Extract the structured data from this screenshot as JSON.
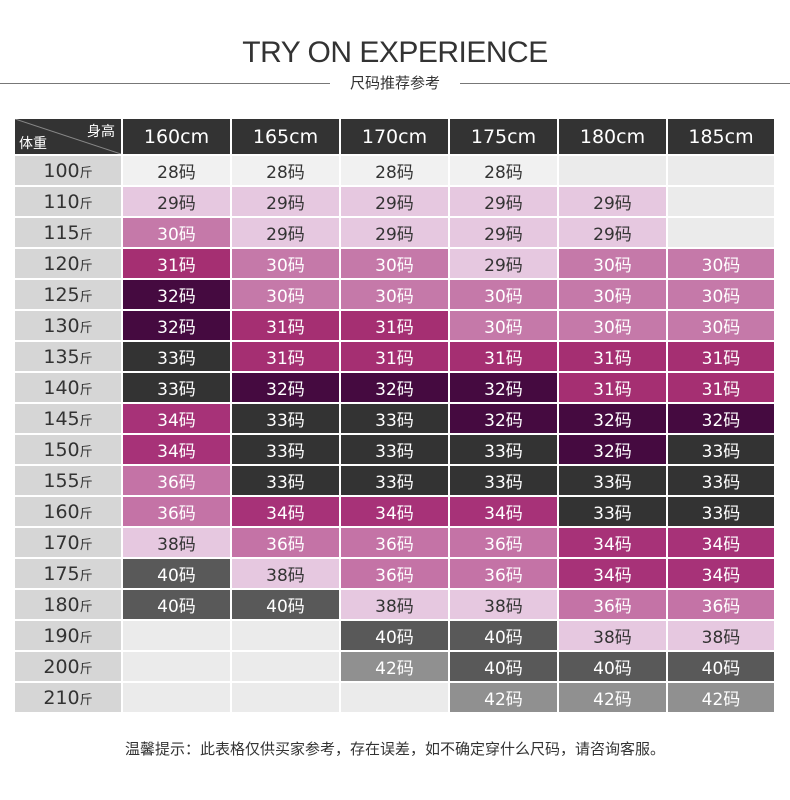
{
  "header": {
    "title": "TRY ON EXPERIENCE",
    "subtitle": "尺码推荐参考"
  },
  "table": {
    "corner_height_label": "身高",
    "corner_weight_label": "体重",
    "weight_unit": "斤",
    "heights": [
      "160cm",
      "165cm",
      "170cm",
      "175cm",
      "180cm",
      "185cm"
    ],
    "rows": [
      {
        "weight": "100",
        "sizes": [
          "28码",
          "28码",
          "28码",
          "28码",
          "",
          ""
        ]
      },
      {
        "weight": "110",
        "sizes": [
          "29码",
          "29码",
          "29码",
          "29码",
          "29码",
          ""
        ]
      },
      {
        "weight": "115",
        "sizes": [
          "30码",
          "29码",
          "29码",
          "29码",
          "29码",
          ""
        ]
      },
      {
        "weight": "120",
        "sizes": [
          "31码",
          "30码",
          "30码",
          "29码",
          "30码",
          "30码"
        ]
      },
      {
        "weight": "125",
        "sizes": [
          "32码",
          "30码",
          "30码",
          "30码",
          "30码",
          "30码"
        ]
      },
      {
        "weight": "130",
        "sizes": [
          "32码",
          "31码",
          "31码",
          "30码",
          "30码",
          "30码"
        ]
      },
      {
        "weight": "135",
        "sizes": [
          "33码",
          "31码",
          "31码",
          "31码",
          "31码",
          "31码"
        ]
      },
      {
        "weight": "140",
        "sizes": [
          "33码",
          "32码",
          "32码",
          "32码",
          "31码",
          "31码"
        ]
      },
      {
        "weight": "145",
        "sizes": [
          "34码",
          "33码",
          "33码",
          "32码",
          "32码",
          "32码"
        ]
      },
      {
        "weight": "150",
        "sizes": [
          "34码",
          "33码",
          "33码",
          "33码",
          "32码",
          "33码"
        ]
      },
      {
        "weight": "155",
        "sizes": [
          "36码",
          "33码",
          "33码",
          "33码",
          "33码",
          "33码"
        ]
      },
      {
        "weight": "160",
        "sizes": [
          "36码",
          "34码",
          "34码",
          "34码",
          "33码",
          "33码"
        ]
      },
      {
        "weight": "170",
        "sizes": [
          "38码",
          "36码",
          "36码",
          "36码",
          "34码",
          "34码"
        ]
      },
      {
        "weight": "175",
        "sizes": [
          "40码",
          "38码",
          "36码",
          "36码",
          "34码",
          "34码"
        ]
      },
      {
        "weight": "180",
        "sizes": [
          "40码",
          "40码",
          "38码",
          "38码",
          "36码",
          "36码"
        ]
      },
      {
        "weight": "190",
        "sizes": [
          "",
          "",
          "40码",
          "40码",
          "38码",
          "38码"
        ]
      },
      {
        "weight": "200",
        "sizes": [
          "",
          "",
          "42码",
          "40码",
          "40码",
          "40码"
        ]
      },
      {
        "weight": "210",
        "sizes": [
          "",
          "",
          "",
          "42码",
          "42码",
          "42码"
        ]
      }
    ]
  },
  "colors": {
    "28": "#f1f1f1",
    "29": "#e6c8e0",
    "30": "#c579a9",
    "31": "#a52f72",
    "32": "#450a40",
    "33": "#333333",
    "34": "#a73278",
    "36": "#c473a6",
    "38": "#e6c8e0",
    "40": "#595959",
    "42": "#909090",
    "empty": "#ebebeb"
  },
  "footer": {
    "note": "温馨提示：此表格仅供买家参考，存在误差，如不确定穿什么尺码，请咨询客服。"
  }
}
